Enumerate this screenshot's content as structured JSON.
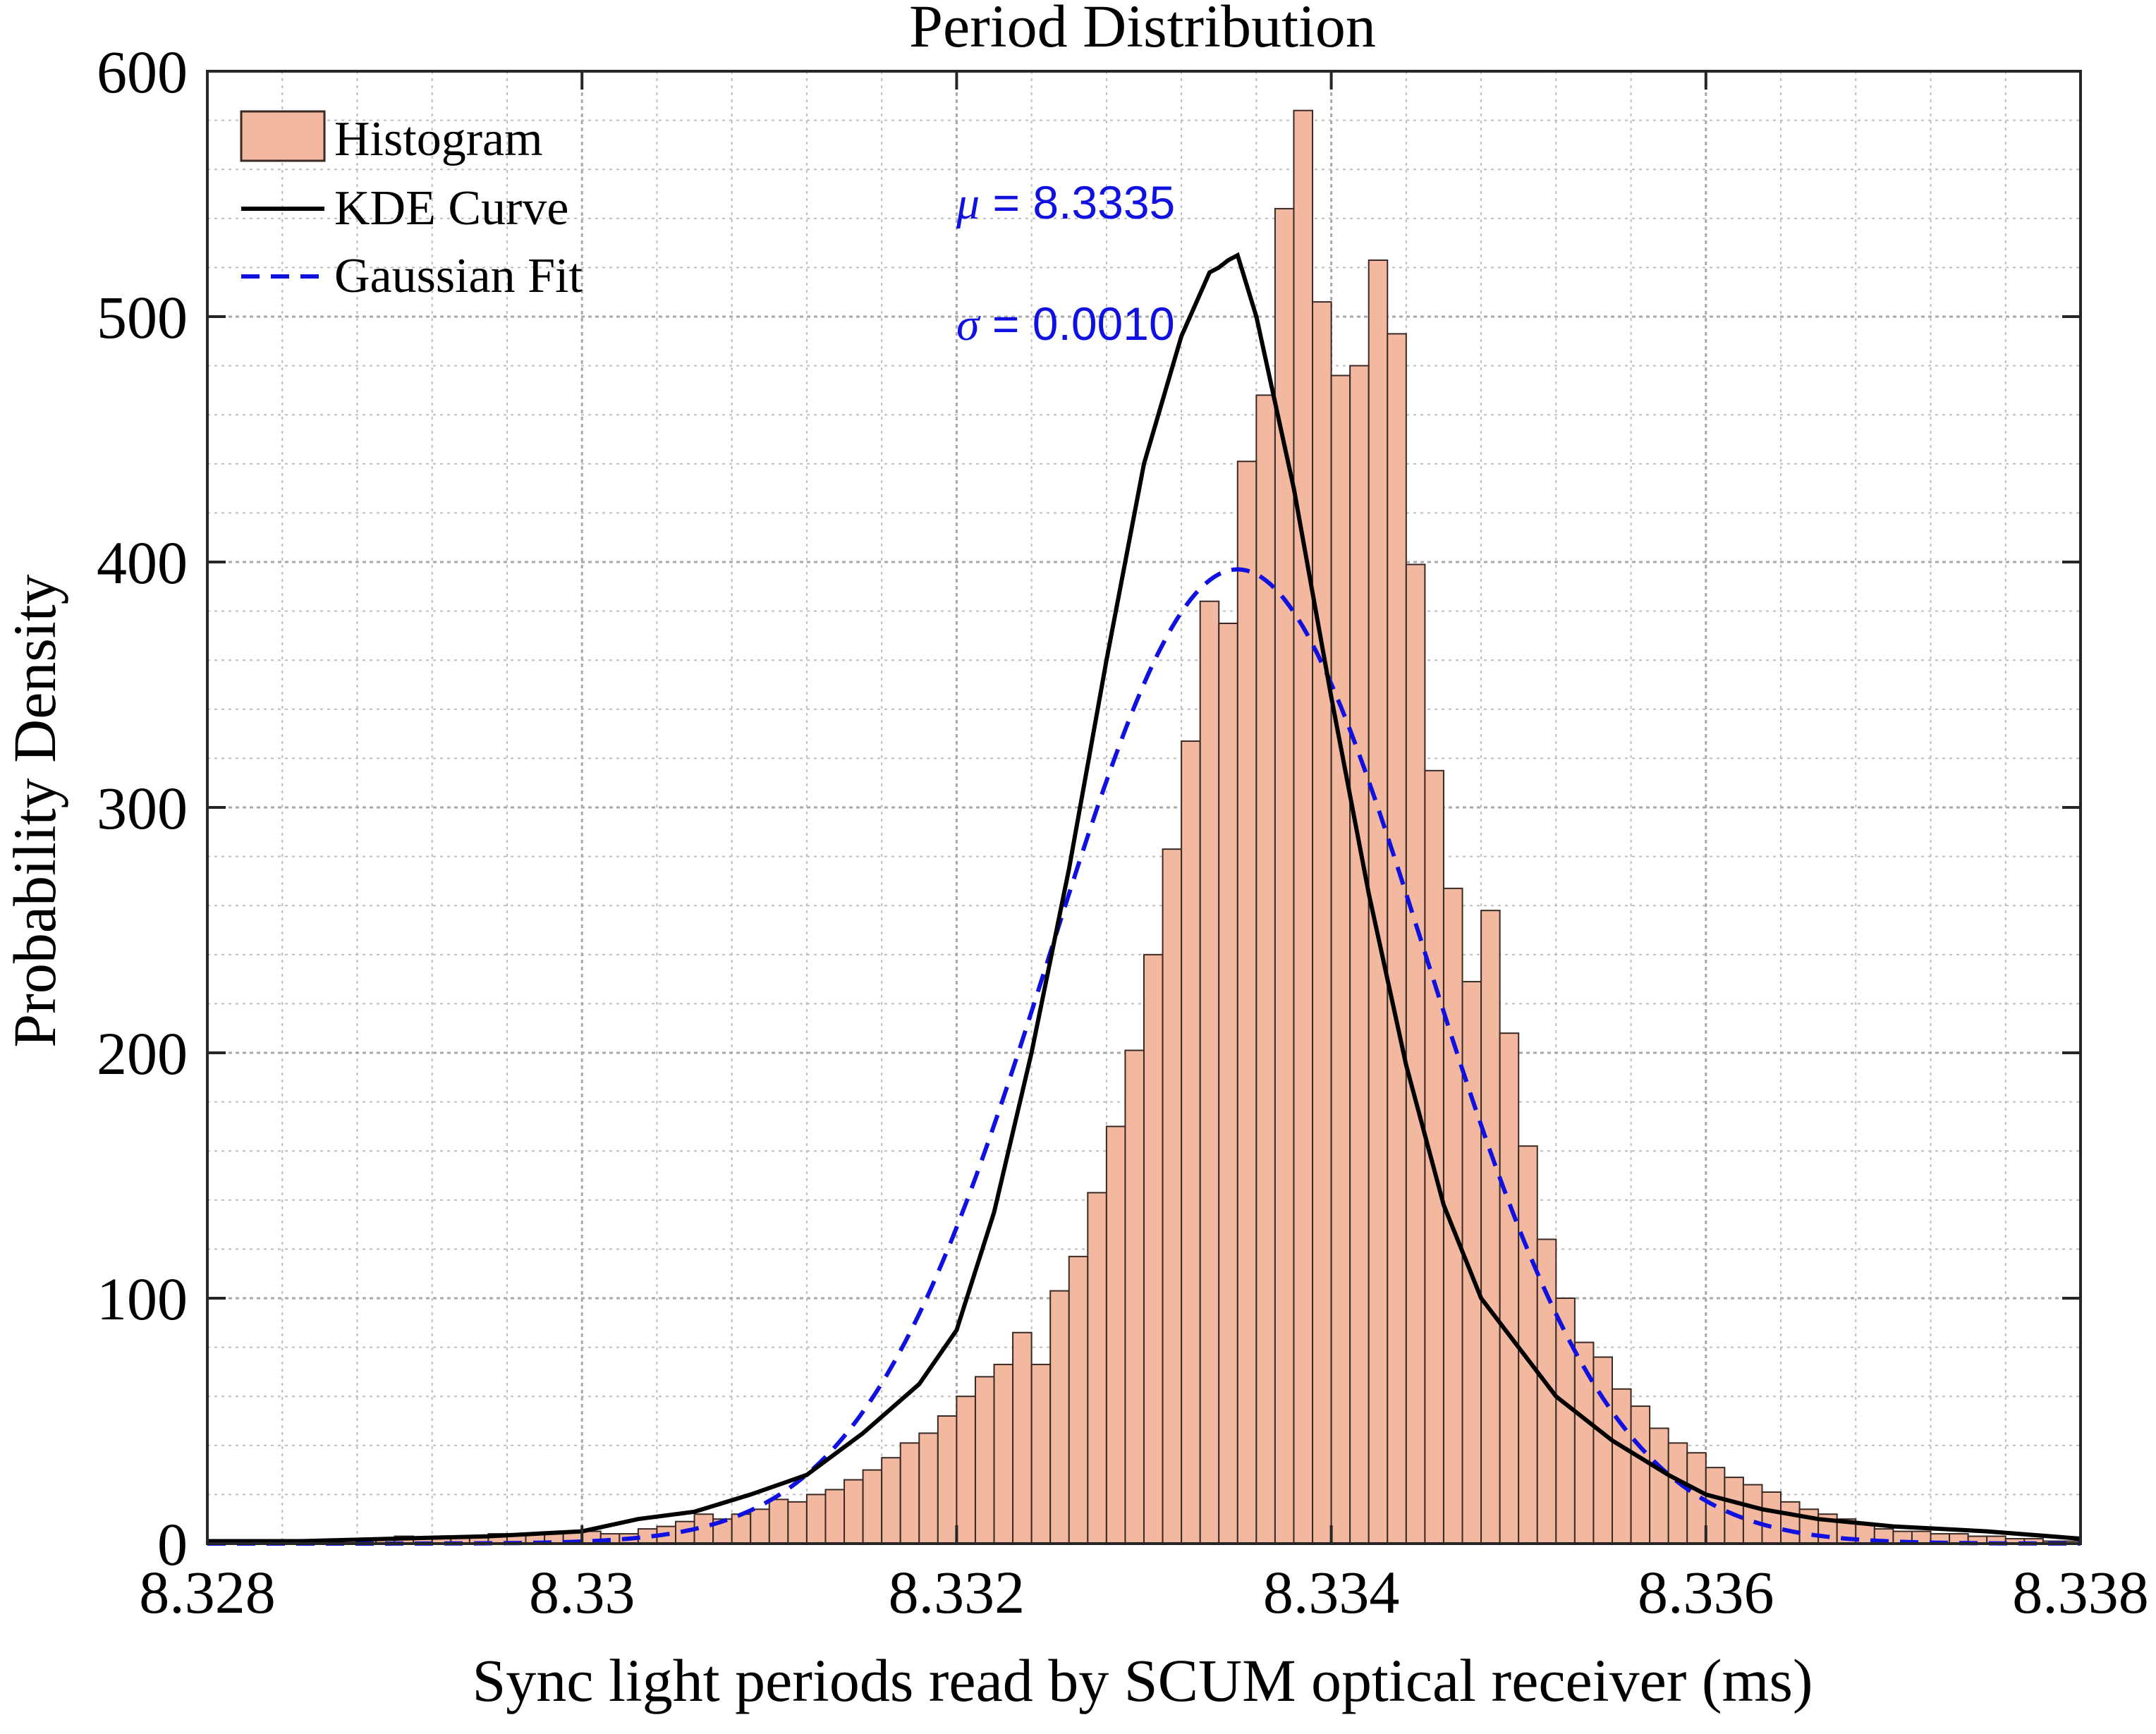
{
  "chart_data": {
    "type": "bar",
    "title": "Period Distribution",
    "xlabel": "Sync light periods read by SCUM optical receiver (ms)",
    "ylabel": "Probability Density",
    "xlim": [
      8.328,
      8.338
    ],
    "ylim": [
      0,
      600
    ],
    "xticks": [
      "8.328",
      "8.33",
      "8.332",
      "8.334",
      "8.336",
      "8.338"
    ],
    "yticks": [
      "0",
      "100",
      "200",
      "300",
      "400",
      "500",
      "600"
    ],
    "grid": true,
    "minor_grid": true,
    "legend_position": "top-left",
    "legend": {
      "histogram": "Histogram",
      "kde": "KDE Curve",
      "gaussian": "Gaussian Fit"
    },
    "annotations": {
      "mu_symbol": "μ",
      "mu_text": " = 8.3335",
      "sigma_symbol": "σ",
      "sigma_text": " = 0.0010"
    },
    "colors": {
      "histogram_fill": "#f2b8a0",
      "histogram_edge": "#3a2a25",
      "kde": "#000000",
      "gaussian": "#1010e0",
      "annotation": "#1010e0",
      "grid": "#bdbdbd"
    },
    "histogram": {
      "bin_start": 8.328,
      "bin_width": 0.0001,
      "values": [
        1,
        1,
        1,
        1,
        1,
        1,
        1,
        1,
        2,
        2,
        3,
        2,
        3,
        3,
        3,
        4,
        4,
        4,
        4,
        5,
        5,
        4,
        4,
        6,
        7,
        9,
        12,
        10,
        12,
        14,
        18,
        17,
        20,
        22,
        26,
        30,
        35,
        41,
        45,
        52,
        60,
        68,
        73,
        86,
        73,
        103,
        117,
        143,
        170,
        201,
        240,
        283,
        327,
        384,
        375,
        441,
        468,
        544,
        584,
        506,
        476,
        480,
        523,
        493,
        399,
        315,
        267,
        229,
        258,
        208,
        162,
        124,
        100,
        82,
        76,
        63,
        56,
        47,
        41,
        37,
        31,
        27,
        24,
        21,
        17,
        14,
        12,
        10,
        8,
        6,
        5,
        5,
        4,
        4,
        3,
        3,
        2,
        2,
        1,
        1
      ]
    },
    "kde": {
      "x": [
        8.328,
        8.3285,
        8.329,
        8.3295,
        8.33,
        8.3303,
        8.3306,
        8.3309,
        8.3312,
        8.3315,
        8.3318,
        8.332,
        8.3322,
        8.3324,
        8.3326,
        8.3328,
        8.333,
        8.3332,
        8.33335,
        8.3334,
        8.33345,
        8.3335,
        8.3336,
        8.3338,
        8.334,
        8.3342,
        8.3344,
        8.3346,
        8.3348,
        8.335,
        8.3352,
        8.3355,
        8.3358,
        8.336,
        8.3363,
        8.3366,
        8.337,
        8.3375,
        8.338
      ],
      "y": [
        1,
        1,
        2,
        3,
        5,
        10,
        13,
        20,
        28,
        45,
        65,
        87,
        135,
        200,
        275,
        360,
        440,
        492,
        518,
        520,
        523,
        525,
        500,
        430,
        345,
        265,
        195,
        138,
        100,
        80,
        60,
        42,
        28,
        20,
        14,
        10,
        7,
        5,
        2
      ]
    },
    "gaussian": {
      "mu": 8.3335,
      "sigma": 0.001,
      "peak": 397
    }
  }
}
